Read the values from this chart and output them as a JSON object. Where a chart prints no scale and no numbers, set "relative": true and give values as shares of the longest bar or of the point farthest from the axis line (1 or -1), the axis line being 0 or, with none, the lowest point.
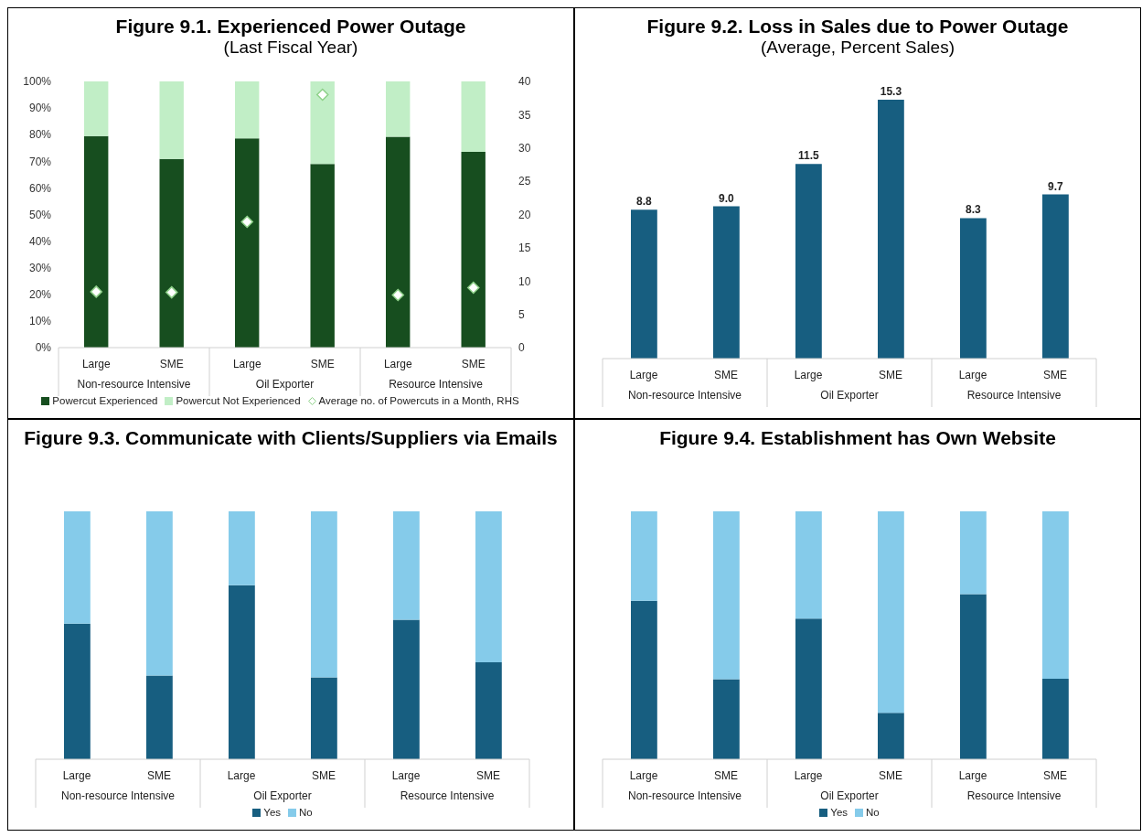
{
  "chart_data": [
    {
      "type": "bar",
      "title": "Figure 9.1. Experienced Power Outage",
      "subtitle": "(Last Fiscal Year)",
      "categories": [
        "Large",
        "SME",
        "Large",
        "SME",
        "Large",
        "SME"
      ],
      "stacked": true,
      "series": [
        {
          "name": "Powercut Experienced",
          "color": "#174e1f",
          "values": [
            79.5,
            70.9,
            78.6,
            69.0,
            79.2,
            73.5
          ]
        },
        {
          "name": "Powercut Not Experienced",
          "color": "#c1eec6",
          "values": [
            20.5,
            29.1,
            21.4,
            31.0,
            20.8,
            26.5
          ]
        },
        {
          "name": "Average no. of Powercuts in a Month, RHS",
          "type": "scatter",
          "axis": "y2",
          "color": "#8fd18a",
          "values": [
            8.4,
            8.3,
            18.9,
            38.0,
            7.9,
            9.0
          ]
        }
      ],
      "marker": "diamond",
      "ylim": [
        0,
        100
      ],
      "yticks": [
        {
          "value": 0,
          "label": "0%"
        },
        {
          "value": 10,
          "label": "10%"
        },
        {
          "value": 20,
          "label": "20%"
        },
        {
          "value": 30,
          "label": "30%"
        },
        {
          "value": 40,
          "label": "40%"
        },
        {
          "value": 50,
          "label": "50%"
        },
        {
          "value": 60,
          "label": "60%"
        },
        {
          "value": 70,
          "label": "70%"
        },
        {
          "value": 80,
          "label": "80%"
        },
        {
          "value": 90,
          "label": "90%"
        },
        {
          "value": 100,
          "label": "100%"
        }
      ],
      "y2lim": [
        0,
        40
      ],
      "y2ticks": [
        0,
        5,
        10,
        15,
        20,
        25,
        30,
        35,
        40
      ],
      "legend": "bottom",
      "annotations": [
        "Non-resource Intensive",
        "Oil Exporter",
        "Resource Intensive"
      ]
    },
    {
      "type": "bar",
      "title": "Figure 9.2. Loss in Sales due to Power Outage",
      "subtitle": "(Average, Percent Sales)",
      "categories": [
        "Large",
        "SME",
        "Large",
        "SME",
        "Large",
        "SME"
      ],
      "series": [
        {
          "color": "#175e80",
          "values": [
            8.8,
            9.0,
            11.5,
            15.3,
            8.3,
            9.7
          ],
          "value_labels": [
            "8.8",
            "9.0",
            "11.5",
            "15.3",
            "8.3",
            "9.7"
          ]
        }
      ],
      "tick_labels": "x",
      "annotations": [
        "Non-resource Intensive",
        "Oil Exporter",
        "Resource Intensive"
      ]
    },
    {
      "type": "bar",
      "title": "Figure 9.3. Communicate with Clients/Suppliers via Emails",
      "categories": [
        "Large",
        "SME",
        "Large",
        "SME",
        "Large",
        "SME"
      ],
      "stacked": true,
      "relative": true,
      "series": [
        {
          "name": "Yes",
          "color": "#175e80",
          "values": [
            0.547,
            0.338,
            0.702,
            0.33,
            0.563,
            0.391
          ]
        },
        {
          "name": "No",
          "color": "#85cbea",
          "values": [
            0.453,
            0.662,
            0.298,
            0.67,
            0.437,
            0.609
          ]
        }
      ],
      "legend": "bottom",
      "annotations": [
        "Non-resource Intensive",
        "Oil Exporter",
        "Resource Intensive"
      ]
    },
    {
      "type": "bar",
      "title": "Figure 9.4. Establishment has Own Website",
      "categories": [
        "Large",
        "SME",
        "Large",
        "SME",
        "Large",
        "SME"
      ],
      "stacked": true,
      "relative": true,
      "series": [
        {
          "name": "Yes",
          "color": "#175e80",
          "values": [
            0.639,
            0.323,
            0.567,
            0.187,
            0.666,
            0.325
          ]
        },
        {
          "name": "No",
          "color": "#85cbea",
          "values": [
            0.361,
            0.677,
            0.433,
            0.813,
            0.334,
            0.675
          ]
        }
      ],
      "legend": "bottom",
      "annotations": [
        "Non-resource Intensive",
        "Oil Exporter",
        "Resource Intensive"
      ]
    }
  ]
}
